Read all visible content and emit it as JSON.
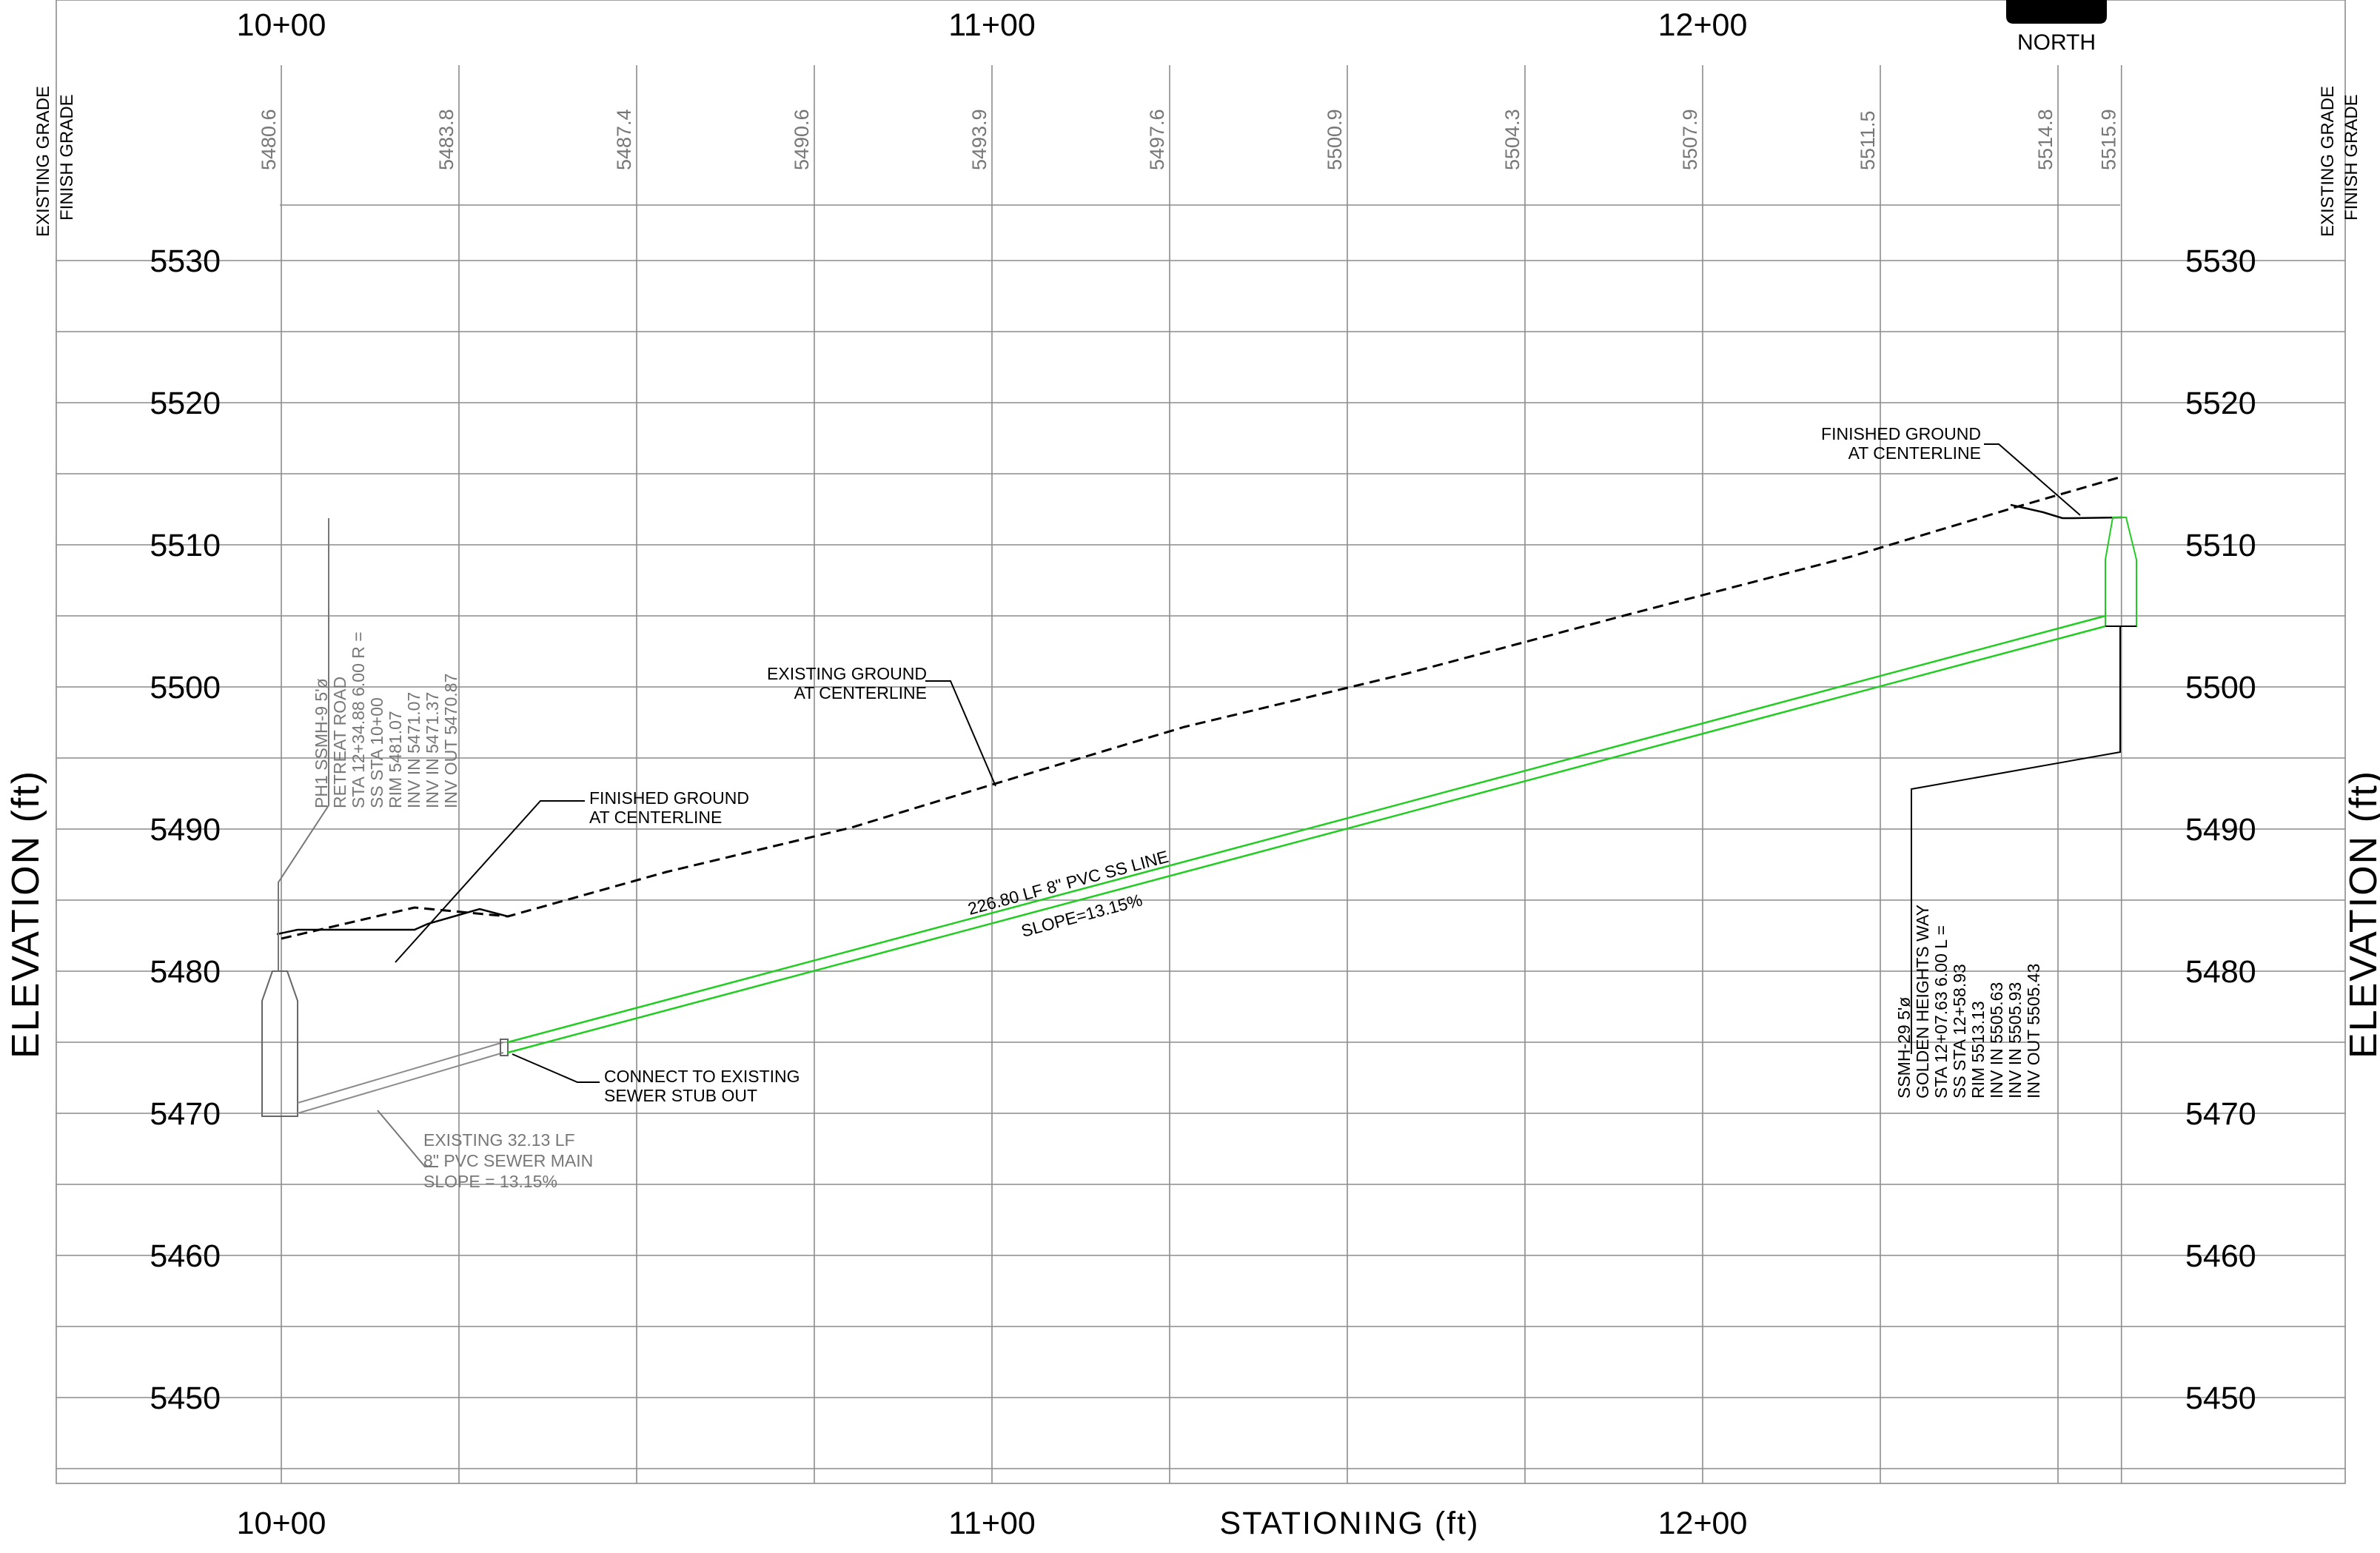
{
  "header": {
    "north_label": "NORTH",
    "grade_header_left": [
      "EXISTING GRADE",
      "FINISH GRADE"
    ],
    "grade_header_right": [
      "EXISTING GRADE",
      "FINISH GRADE"
    ]
  },
  "axes": {
    "y_title": "ELEVATION (ft)",
    "x_title": "STATIONING (ft)",
    "elevation_labels": [
      "5530",
      "5520",
      "5510",
      "5500",
      "5490",
      "5480",
      "5470",
      "5460",
      "5450"
    ],
    "station_labels_top": [
      "10+00",
      "11+00",
      "12+00"
    ],
    "station_labels_bottom": [
      "10+00",
      "11+00",
      "12+00"
    ],
    "elev_range": [
      5445,
      5535
    ],
    "station_range": [
      1000,
      1258.93
    ]
  },
  "grade_values": [
    {
      "station": 1000,
      "value": "5480.6"
    },
    {
      "station": 1025,
      "value": "5483.8"
    },
    {
      "station": 1050,
      "value": "5487.4"
    },
    {
      "station": 1075,
      "value": "5490.6"
    },
    {
      "station": 1100,
      "value": "5493.9"
    },
    {
      "station": 1125,
      "value": "5497.6"
    },
    {
      "station": 1150,
      "value": "5500.9"
    },
    {
      "station": 1175,
      "value": "5504.3"
    },
    {
      "station": 1200,
      "value": "5507.9"
    },
    {
      "station": 1225,
      "value": "5511.5"
    },
    {
      "station": 1250,
      "value": "5514.8"
    },
    {
      "station": 1258.93,
      "value": "5515.9"
    }
  ],
  "annotations": {
    "mh_left": [
      "PH1 SSMH-9 5'ø",
      "RETREAT ROAD",
      "STA 12+34.88 6.00 R =",
      "SS STA 10+00",
      "RIM 5481.07",
      "INV IN 5471.07",
      "INV IN 5471.37",
      "INV OUT 5470.87"
    ],
    "mh_right": [
      "SSMH-29 5'ø",
      "GOLDEN HEIGHTS WAY",
      "STA 12+07.63 6.00 L =",
      "SS STA 12+58.93",
      "RIM 5513.13",
      "INV IN 5505.63",
      "INV IN 5505.93",
      "INV OUT 5505.43"
    ],
    "finished_ground_left": [
      "FINISHED GROUND",
      "AT CENTERLINE"
    ],
    "finished_ground_right": [
      "FINISHED GROUND",
      "AT CENTERLINE"
    ],
    "existing_ground": [
      "EXISTING GROUND",
      "AT CENTERLINE"
    ],
    "pipe_label": "226.80 LF 8\" PVC SS LINE",
    "slope_label": "SLOPE=13.15%",
    "connect_note": [
      "CONNECT TO EXISTING",
      "SEWER STUB OUT"
    ],
    "existing_main_note": [
      "EXISTING 32.13 LF",
      "8\" PVC SEWER MAIN",
      "SLOPE = 13.15%"
    ]
  },
  "colors": {
    "grid": "#8c8c8c",
    "pipe": "#22cc22",
    "existing_pipe": "#8c8c8c",
    "ink": "#000000"
  }
}
